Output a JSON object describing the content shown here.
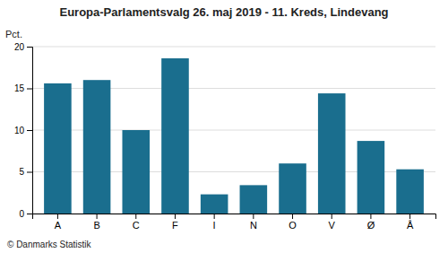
{
  "chart_data": {
    "type": "bar",
    "title": "Europa-Parlamentsvalg 26. maj 2019 - 11. Kreds, Lindevang",
    "ylabel": "Pct.",
    "footer": "© Danmarks Statistik",
    "categories": [
      "A",
      "B",
      "C",
      "F",
      "I",
      "N",
      "O",
      "V",
      "Ø",
      "Å"
    ],
    "values": [
      15.6,
      16.0,
      10.0,
      18.6,
      2.3,
      3.4,
      6.0,
      14.4,
      8.7,
      5.3
    ],
    "color": "#1a6e8e",
    "ylim": [
      0,
      20
    ],
    "yticks": [
      0,
      5,
      10,
      15,
      20
    ],
    "grid": true
  }
}
